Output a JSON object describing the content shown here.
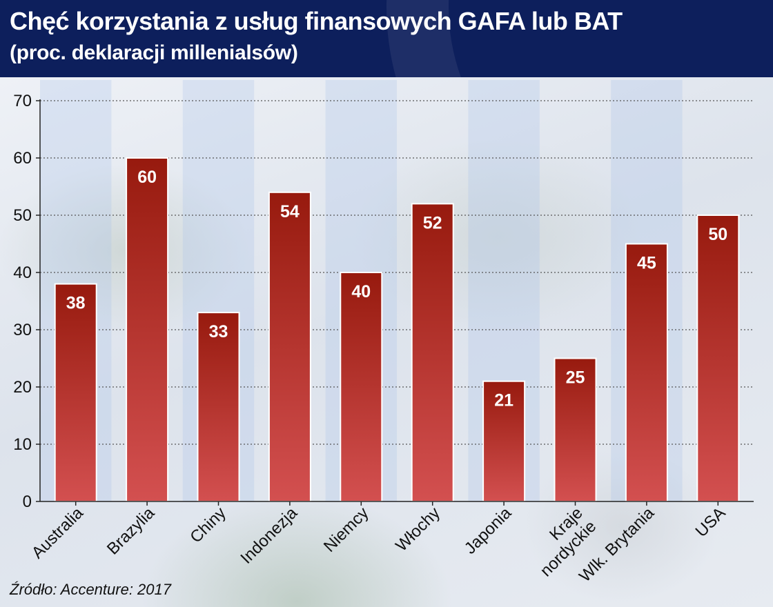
{
  "header": {
    "title": "Chęć korzystania z usług finansowych GAFA lub BAT",
    "subtitle": "(proc. deklaracji millenialsów)"
  },
  "source": "Źródło: Accenture: 2017",
  "colors": {
    "header_bg": "#0d1f5c",
    "bar_top": "#971a0e",
    "bar_bottom": "#d35050",
    "bar_border": "#ffffff",
    "axis": "#222222"
  },
  "chart_data": {
    "type": "bar",
    "title": "Chęć korzystania z usług finansowych GAFA lub BAT",
    "subtitle": "(proc. deklaracji millenialsów)",
    "categories": [
      "Australia",
      "Brazylia",
      "Chiny",
      "Indonezja",
      "Niemcy",
      "Włochy",
      "Japonia",
      "Kraje nordyckie",
      "Wlk. Brytania",
      "USA"
    ],
    "category_lines": [
      [
        "Australia"
      ],
      [
        "Brazylia"
      ],
      [
        "Chiny"
      ],
      [
        "Indonezja"
      ],
      [
        "Niemcy"
      ],
      [
        "Włochy"
      ],
      [
        "Japonia"
      ],
      [
        "Kraje",
        "nordyckie"
      ],
      [
        "Wlk. Brytania"
      ],
      [
        "USA"
      ]
    ],
    "values": [
      38,
      60,
      33,
      54,
      40,
      52,
      21,
      25,
      45,
      50
    ],
    "data_labels": [
      "38",
      "60",
      "33",
      "54",
      "40",
      "52",
      "21",
      "25",
      "45",
      "50"
    ],
    "ylim": [
      0,
      70
    ],
    "yticks": [
      0,
      10,
      20,
      30,
      40,
      50,
      60,
      70
    ],
    "xlabel": "",
    "ylabel": "",
    "grid": true,
    "legend": "none"
  }
}
